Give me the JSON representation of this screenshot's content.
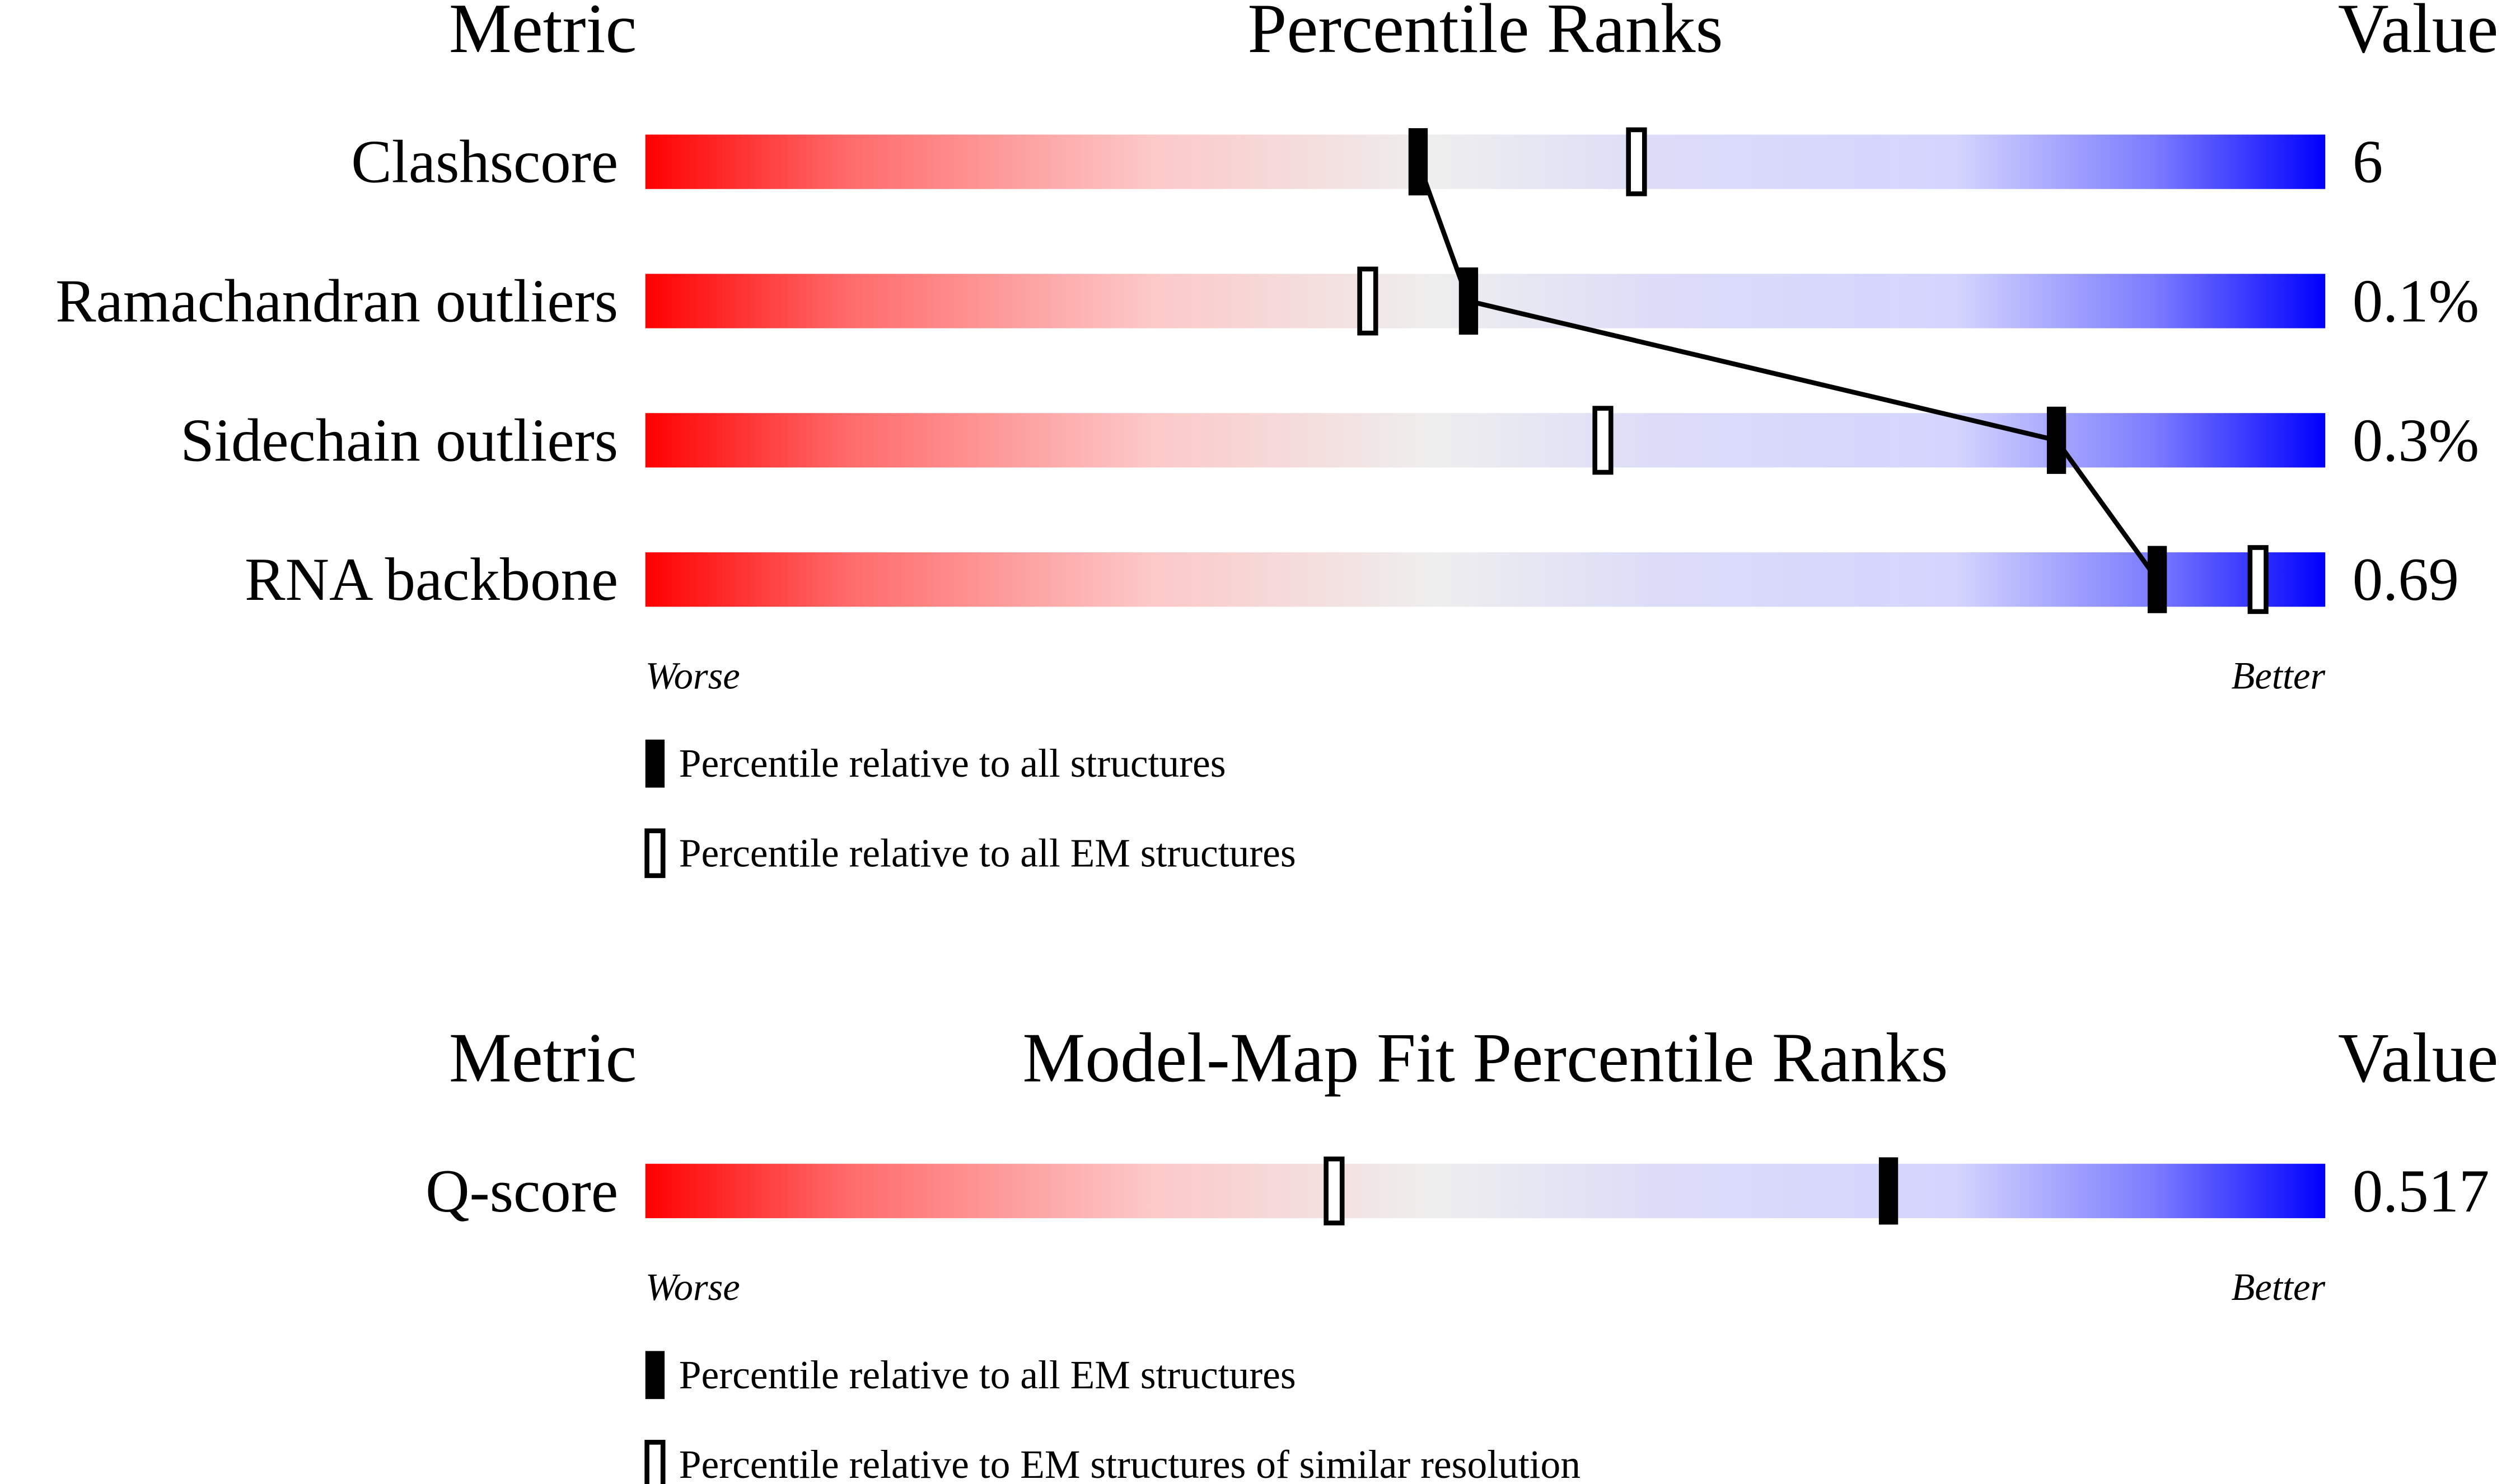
{
  "chart_data": [
    {
      "type": "percentile-slider",
      "title": "Percentile Ranks",
      "metric_header": "Metric",
      "value_header": "Value",
      "categories": [
        "Clashscore",
        "Ramachandran outliers",
        "Sidechain outliers",
        "RNA backbone"
      ],
      "metric_values": [
        "6",
        "0.1%",
        "0.3%",
        "0.69"
      ],
      "xlim": [
        0,
        100
      ],
      "x_left_label": "Worse",
      "x_right_label": "Better",
      "series": [
        {
          "name": "Percentile relative to all structures",
          "style": "filled",
          "connected": true,
          "color": "#000000",
          "values": [
            46,
            49,
            84,
            90
          ]
        },
        {
          "name": "Percentile relative to all EM structures",
          "style": "open",
          "connected": false,
          "color": "#000000",
          "values": [
            59,
            43,
            57,
            96
          ]
        }
      ]
    },
    {
      "type": "percentile-slider",
      "title": "Model-Map Fit Percentile Ranks",
      "metric_header": "Metric",
      "value_header": "Value",
      "categories": [
        "Q-score"
      ],
      "metric_values": [
        "0.517"
      ],
      "xlim": [
        0,
        100
      ],
      "x_left_label": "Worse",
      "x_right_label": "Better",
      "series": [
        {
          "name": "Percentile relative to all EM structures",
          "style": "filled",
          "connected": true,
          "color": "#000000",
          "values": [
            74
          ]
        },
        {
          "name": "Percentile relative to EM structures of similar resolution",
          "style": "open",
          "connected": false,
          "color": "#000000",
          "values": [
            41
          ]
        }
      ]
    }
  ]
}
